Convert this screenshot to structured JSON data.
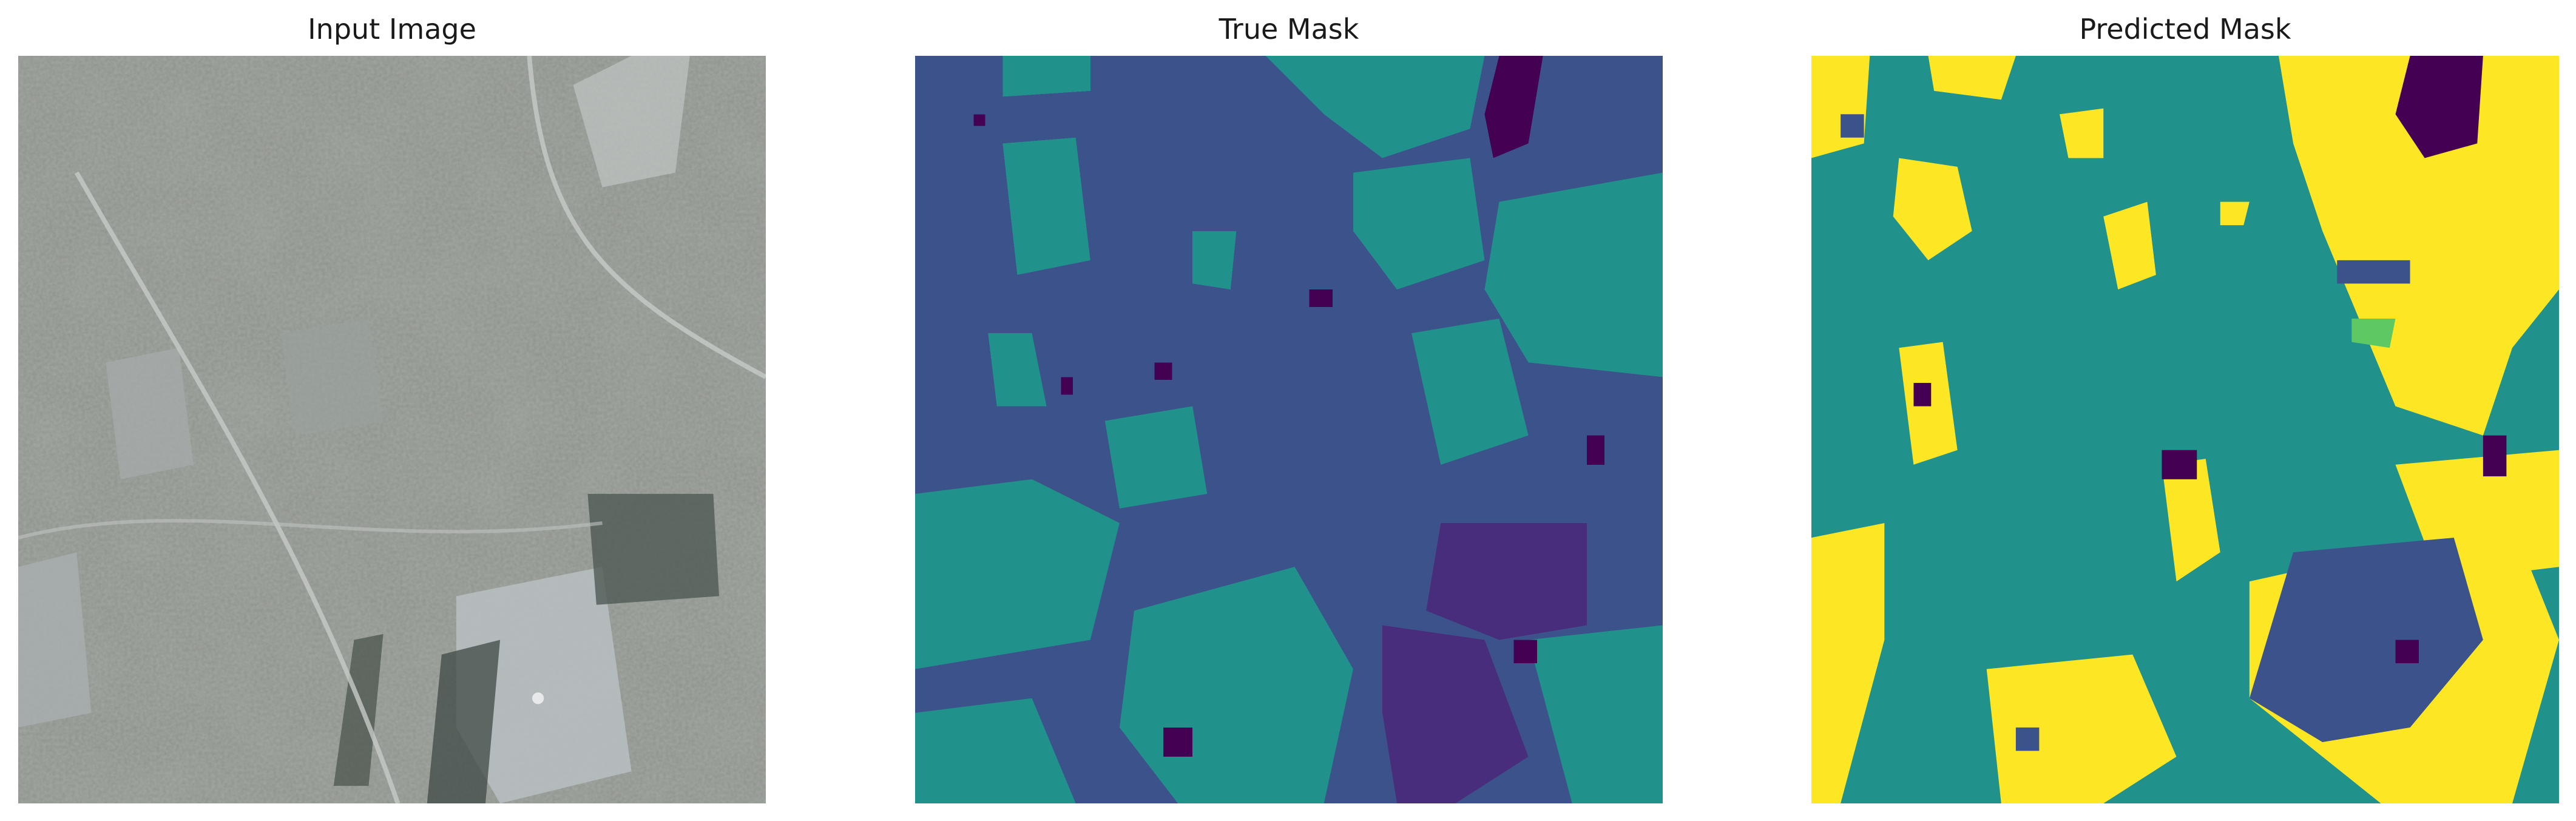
{
  "panels": [
    {
      "title": "Input Image"
    },
    {
      "title": "True Mask"
    },
    {
      "title": "Predicted Mask"
    }
  ],
  "colors": {
    "viridis_0": "#440154",
    "viridis_1": "#3b528b",
    "viridis_2": "#21918c",
    "viridis_3": "#5ec962",
    "viridis_4": "#fde725",
    "aerial_gray": "#8e928c"
  }
}
